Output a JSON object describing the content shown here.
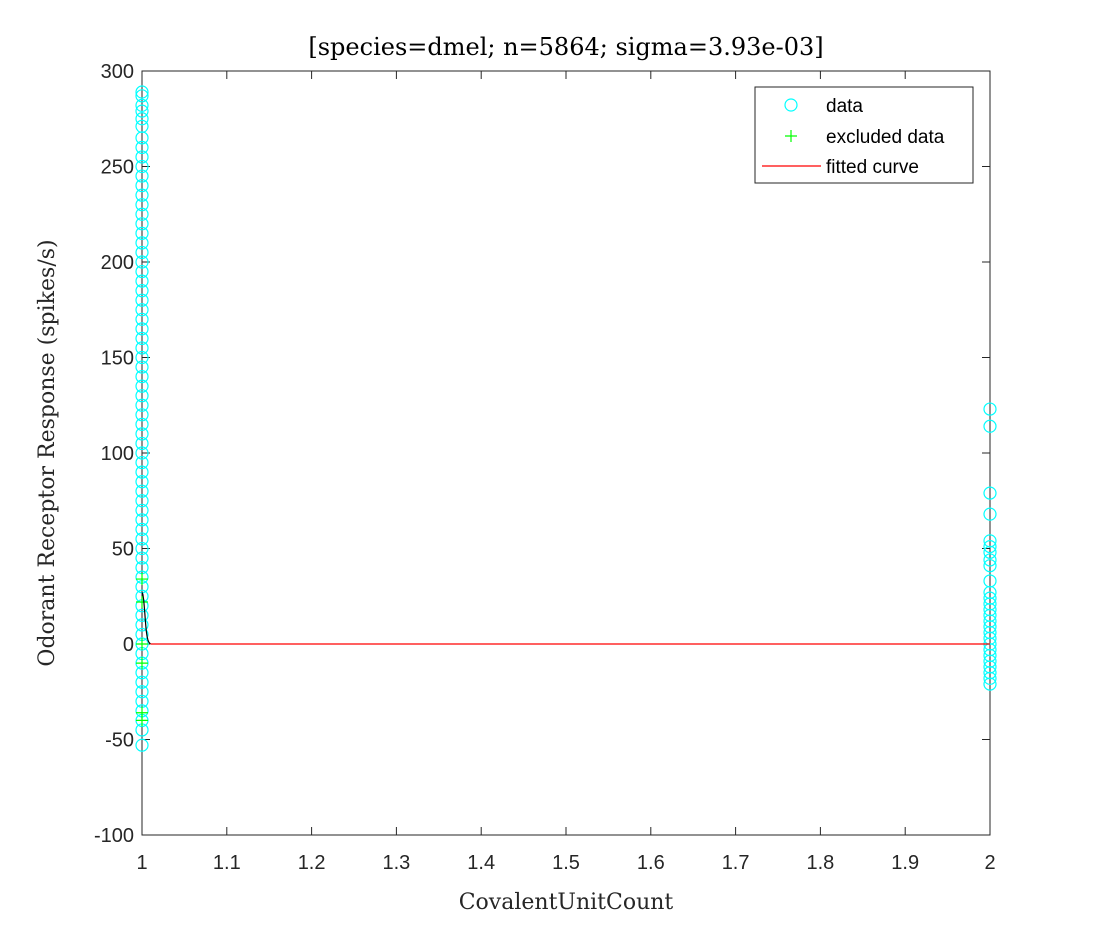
{
  "chart_data": {
    "type": "scatter",
    "title": "[species=dmel; n=5864; sigma=3.93e-03]",
    "xlabel": "CovalentUnitCount",
    "ylabel": "Odorant Receptor Response (spikes/s)",
    "xlim": [
      1,
      2
    ],
    "ylim": [
      -100,
      300
    ],
    "xticks": [
      "1",
      "1.1",
      "1.2",
      "1.3",
      "1.4",
      "1.5",
      "1.6",
      "1.7",
      "1.8",
      "1.9",
      "2"
    ],
    "yticks": [
      "-100",
      "-50",
      "0",
      "50",
      "100",
      "150",
      "200",
      "250",
      "300"
    ],
    "grid": false,
    "legend_position": "top-right",
    "colors": {
      "data": "#00ffff",
      "excluded": "#00ff00",
      "fitted": "#ff0000",
      "fitted_dark": "#000000"
    },
    "series": [
      {
        "name": "data",
        "marker": "circle",
        "points": [
          [
            1,
            289
          ],
          [
            1,
            287
          ],
          [
            1,
            282
          ],
          [
            1,
            279
          ],
          [
            1,
            275
          ],
          [
            1,
            271
          ],
          [
            1,
            265
          ],
          [
            1,
            260
          ],
          [
            1,
            255
          ],
          [
            1,
            250
          ],
          [
            1,
            245
          ],
          [
            1,
            240
          ],
          [
            1,
            235
          ],
          [
            1,
            230
          ],
          [
            1,
            225
          ],
          [
            1,
            220
          ],
          [
            1,
            215
          ],
          [
            1,
            210
          ],
          [
            1,
            205
          ],
          [
            1,
            200
          ],
          [
            1,
            195
          ],
          [
            1,
            190
          ],
          [
            1,
            185
          ],
          [
            1,
            180
          ],
          [
            1,
            175
          ],
          [
            1,
            170
          ],
          [
            1,
            165
          ],
          [
            1,
            160
          ],
          [
            1,
            155
          ],
          [
            1,
            150
          ],
          [
            1,
            145
          ],
          [
            1,
            140
          ],
          [
            1,
            135
          ],
          [
            1,
            130
          ],
          [
            1,
            125
          ],
          [
            1,
            120
          ],
          [
            1,
            115
          ],
          [
            1,
            110
          ],
          [
            1,
            105
          ],
          [
            1,
            100
          ],
          [
            1,
            95
          ],
          [
            1,
            90
          ],
          [
            1,
            85
          ],
          [
            1,
            80
          ],
          [
            1,
            75
          ],
          [
            1,
            70
          ],
          [
            1,
            65
          ],
          [
            1,
            60
          ],
          [
            1,
            55
          ],
          [
            1,
            50
          ],
          [
            1,
            45
          ],
          [
            1,
            40
          ],
          [
            1,
            35
          ],
          [
            1,
            30
          ],
          [
            1,
            25
          ],
          [
            1,
            20
          ],
          [
            1,
            15
          ],
          [
            1,
            10
          ],
          [
            1,
            5
          ],
          [
            1,
            0
          ],
          [
            1,
            -5
          ],
          [
            1,
            -10
          ],
          [
            1,
            -15
          ],
          [
            1,
            -20
          ],
          [
            1,
            -25
          ],
          [
            1,
            -30
          ],
          [
            1,
            -35
          ],
          [
            1,
            -40
          ],
          [
            1,
            -45
          ],
          [
            1,
            -53
          ],
          [
            2,
            123
          ],
          [
            2,
            114
          ],
          [
            2,
            79
          ],
          [
            2,
            68
          ],
          [
            2,
            54
          ],
          [
            2,
            51
          ],
          [
            2,
            48
          ],
          [
            2,
            44
          ],
          [
            2,
            41
          ],
          [
            2,
            33
          ],
          [
            2,
            27
          ],
          [
            2,
            24
          ],
          [
            2,
            21
          ],
          [
            2,
            18
          ],
          [
            2,
            15
          ],
          [
            2,
            12
          ],
          [
            2,
            9
          ],
          [
            2,
            6
          ],
          [
            2,
            3
          ],
          [
            2,
            0
          ],
          [
            2,
            -3
          ],
          [
            2,
            -6
          ],
          [
            2,
            -9
          ],
          [
            2,
            -12
          ],
          [
            2,
            -15
          ],
          [
            2,
            -18
          ],
          [
            2,
            -21
          ]
        ]
      },
      {
        "name": "excluded data",
        "marker": "plus",
        "points": [
          [
            1,
            34
          ],
          [
            1,
            22
          ],
          [
            1,
            0
          ],
          [
            1,
            -10
          ],
          [
            1,
            -36
          ],
          [
            1,
            -40
          ]
        ]
      },
      {
        "name": "fitted curve",
        "marker": "line",
        "points": [
          [
            1,
            27
          ],
          [
            1.001,
            26
          ],
          [
            1.002,
            23
          ],
          [
            1.003,
            18
          ],
          [
            1.004,
            12
          ],
          [
            1.005,
            7
          ],
          [
            1.006,
            4
          ],
          [
            1.007,
            2
          ],
          [
            1.008,
            1
          ],
          [
            1.01,
            0
          ],
          [
            1.2,
            0
          ],
          [
            1.5,
            0
          ],
          [
            1.8,
            0
          ],
          [
            2,
            0
          ]
        ]
      }
    ]
  }
}
